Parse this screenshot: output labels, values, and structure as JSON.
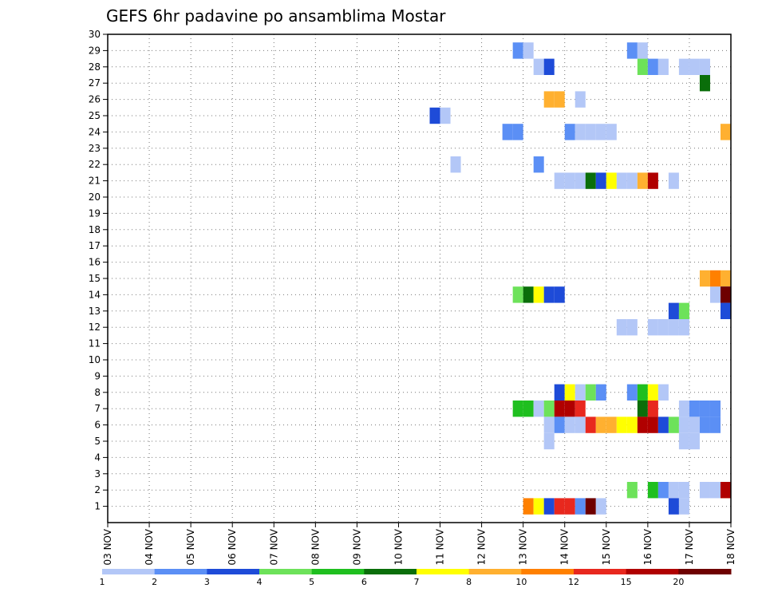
{
  "chart_data": {
    "type": "heatmap",
    "title": "GEFS 6hr padavine po ansamblima Mostar",
    "xlabel": "",
    "ylabel": "",
    "x_tick_labels": [
      "03 NOV",
      "04 NOV",
      "05 NOV",
      "06 NOV",
      "07 NOV",
      "08 NOV",
      "09 NOV",
      "10 NOV",
      "11 NOV",
      "12 NOV",
      "13 NOV",
      "14 NOV",
      "15 NOV",
      "16 NOV",
      "17 NOV",
      "18 NOV"
    ],
    "y_tick_labels": [
      "1",
      "2",
      "3",
      "4",
      "5",
      "6",
      "7",
      "8",
      "9",
      "10",
      "11",
      "12",
      "13",
      "14",
      "15",
      "16",
      "17",
      "18",
      "19",
      "20",
      "21",
      "22",
      "23",
      "24",
      "25",
      "26",
      "27",
      "28",
      "29",
      "30"
    ],
    "x_range_days": [
      0,
      15
    ],
    "y_range": [
      0,
      30
    ],
    "grid": true,
    "colorbar": {
      "labels": [
        "1",
        "2",
        "3",
        "4",
        "5",
        "6",
        "7",
        "8",
        "10",
        "12",
        "15",
        "20"
      ],
      "colors": [
        "#b3c7f7",
        "#5b8ff5",
        "#1e4bd8",
        "#6de25a",
        "#1fbf1f",
        "#0a6e0a",
        "#ffff00",
        "#ffb030",
        "#ff8000",
        "#e8281e",
        "#b00000",
        "#6e0000"
      ]
    },
    "cells": [
      {
        "member": 29,
        "day": 9.75,
        "c": 2
      },
      {
        "member": 29,
        "day": 10.0,
        "c": 1
      },
      {
        "member": 29,
        "day": 12.5,
        "c": 2
      },
      {
        "member": 29,
        "day": 12.75,
        "c": 1
      },
      {
        "member": 28,
        "day": 10.25,
        "c": 1
      },
      {
        "member": 28,
        "day": 10.5,
        "c": 3
      },
      {
        "member": 28,
        "day": 12.75,
        "c": 4
      },
      {
        "member": 28,
        "day": 13.0,
        "c": 2
      },
      {
        "member": 28,
        "day": 13.25,
        "c": 1
      },
      {
        "member": 28,
        "day": 13.75,
        "c": 1
      },
      {
        "member": 28,
        "day": 14.0,
        "c": 1
      },
      {
        "member": 28,
        "day": 14.25,
        "c": 1
      },
      {
        "member": 27,
        "day": 14.25,
        "c": 6
      },
      {
        "member": 26,
        "day": 10.5,
        "c": 8
      },
      {
        "member": 26,
        "day": 10.75,
        "c": 8
      },
      {
        "member": 26,
        "day": 11.25,
        "c": 1
      },
      {
        "member": 25,
        "day": 7.75,
        "c": 3
      },
      {
        "member": 25,
        "day": 8.0,
        "c": 1
      },
      {
        "member": 24,
        "day": 9.5,
        "c": 2
      },
      {
        "member": 24,
        "day": 9.75,
        "c": 2
      },
      {
        "member": 24,
        "day": 11.0,
        "c": 2
      },
      {
        "member": 24,
        "day": 11.25,
        "c": 1
      },
      {
        "member": 24,
        "day": 11.5,
        "c": 1
      },
      {
        "member": 24,
        "day": 11.75,
        "c": 1
      },
      {
        "member": 24,
        "day": 12.0,
        "c": 1
      },
      {
        "member": 24,
        "day": 14.75,
        "c": 8
      },
      {
        "member": 22,
        "day": 8.25,
        "c": 1
      },
      {
        "member": 22,
        "day": 10.25,
        "c": 2
      },
      {
        "member": 21,
        "day": 10.75,
        "c": 1
      },
      {
        "member": 21,
        "day": 11.0,
        "c": 1
      },
      {
        "member": 21,
        "day": 11.25,
        "c": 1
      },
      {
        "member": 21,
        "day": 11.5,
        "c": 6
      },
      {
        "member": 21,
        "day": 11.75,
        "c": 3
      },
      {
        "member": 21,
        "day": 12.0,
        "c": 7
      },
      {
        "member": 21,
        "day": 12.25,
        "c": 1
      },
      {
        "member": 21,
        "day": 12.5,
        "c": 1
      },
      {
        "member": 21,
        "day": 12.75,
        "c": 8
      },
      {
        "member": 21,
        "day": 13.0,
        "c": 11
      },
      {
        "member": 21,
        "day": 13.5,
        "c": 1
      },
      {
        "member": 15,
        "day": 14.75,
        "c": 8
      },
      {
        "member": 14,
        "day": 9.75,
        "c": 4
      },
      {
        "member": 14,
        "day": 10.0,
        "c": 6
      },
      {
        "member": 14,
        "day": 10.25,
        "c": 7
      },
      {
        "member": 14,
        "day": 10.5,
        "c": 3
      },
      {
        "member": 14,
        "day": 10.75,
        "c": 3
      },
      {
        "member": 14,
        "day": 14.5,
        "c": 1
      },
      {
        "member": 14,
        "day": 14.75,
        "c": 3
      },
      {
        "member": 13,
        "day": 13.5,
        "c": 3
      },
      {
        "member": 13,
        "day": 13.75,
        "c": 4
      },
      {
        "member": 12,
        "day": 12.25,
        "c": 1
      },
      {
        "member": 12,
        "day": 12.5,
        "c": 1
      },
      {
        "member": 12,
        "day": 13.0,
        "c": 1
      },
      {
        "member": 12,
        "day": 13.25,
        "c": 1
      },
      {
        "member": 12,
        "day": 13.5,
        "c": 1
      },
      {
        "member": 12,
        "day": 13.75,
        "c": 1
      },
      {
        "member": 8,
        "day": 10.75,
        "c": 3
      },
      {
        "member": 8,
        "day": 11.0,
        "c": 7
      },
      {
        "member": 8,
        "day": 11.25,
        "c": 1
      },
      {
        "member": 8,
        "day": 11.5,
        "c": 4
      },
      {
        "member": 8,
        "day": 11.75,
        "c": 2
      },
      {
        "member": 8,
        "day": 12.5,
        "c": 2
      },
      {
        "member": 8,
        "day": 12.75,
        "c": 5
      },
      {
        "member": 8,
        "day": 13.0,
        "c": 7
      },
      {
        "member": 8,
        "day": 13.25,
        "c": 1
      },
      {
        "member": 7,
        "day": 9.75,
        "c": 5
      },
      {
        "member": 7,
        "day": 10.0,
        "c": 5
      },
      {
        "member": 7,
        "day": 10.25,
        "c": 1
      },
      {
        "member": 7,
        "day": 10.5,
        "c": 4
      },
      {
        "member": 7,
        "day": 10.75,
        "c": 11
      },
      {
        "member": 7,
        "day": 11.0,
        "c": 11
      },
      {
        "member": 7,
        "day": 11.25,
        "c": 10
      },
      {
        "member": 7,
        "day": 12.75,
        "c": 6
      },
      {
        "member": 7,
        "day": 13.0,
        "c": 10
      },
      {
        "member": 7,
        "day": 13.75,
        "c": 1
      },
      {
        "member": 7,
        "day": 14.0,
        "c": 2
      },
      {
        "member": 7,
        "day": 14.25,
        "c": 2
      },
      {
        "member": 7,
        "day": 14.5,
        "c": 2
      },
      {
        "member": 6,
        "day": 10.5,
        "c": 1
      },
      {
        "member": 6,
        "day": 10.75,
        "c": 2
      },
      {
        "member": 6,
        "day": 11.0,
        "c": 1
      },
      {
        "member": 6,
        "day": 11.25,
        "c": 1
      },
      {
        "member": 6,
        "day": 11.5,
        "c": 10
      },
      {
        "member": 6,
        "day": 11.75,
        "c": 8
      },
      {
        "member": 6,
        "day": 12.0,
        "c": 8
      },
      {
        "member": 6,
        "day": 12.25,
        "c": 7
      },
      {
        "member": 6,
        "day": 12.5,
        "c": 7
      },
      {
        "member": 6,
        "day": 12.75,
        "c": 11
      },
      {
        "member": 6,
        "day": 13.0,
        "c": 11
      },
      {
        "member": 6,
        "day": 13.25,
        "c": 3
      },
      {
        "member": 6,
        "day": 13.5,
        "c": 4
      },
      {
        "member": 6,
        "day": 13.75,
        "c": 1
      },
      {
        "member": 6,
        "day": 14.0,
        "c": 1
      },
      {
        "member": 6,
        "day": 14.25,
        "c": 2
      },
      {
        "member": 6,
        "day": 14.5,
        "c": 2
      },
      {
        "member": 5,
        "day": 10.5,
        "c": 1
      },
      {
        "member": 5,
        "day": 13.75,
        "c": 1
      },
      {
        "member": 5,
        "day": 14.0,
        "c": 1
      },
      {
        "member": 2,
        "day": 12.5,
        "c": 4
      },
      {
        "member": 2,
        "day": 13.0,
        "c": 5
      },
      {
        "member": 2,
        "day": 13.25,
        "c": 2
      },
      {
        "member": 2,
        "day": 13.5,
        "c": 1
      },
      {
        "member": 2,
        "day": 13.75,
        "c": 1
      },
      {
        "member": 2,
        "day": 14.25,
        "c": 1
      },
      {
        "member": 2,
        "day": 14.5,
        "c": 1
      },
      {
        "member": 2,
        "day": 14.75,
        "c": 8
      },
      {
        "member": 2,
        "day": 15.0,
        "c": 11
      },
      {
        "member": 1,
        "day": 10.0,
        "c": 9
      },
      {
        "member": 1,
        "day": 10.25,
        "c": 7
      },
      {
        "member": 1,
        "day": 10.5,
        "c": 3
      },
      {
        "member": 1,
        "day": 10.75,
        "c": 10
      },
      {
        "member": 1,
        "day": 11.0,
        "c": 10
      },
      {
        "member": 1,
        "day": 11.25,
        "c": 2
      },
      {
        "member": 1,
        "day": 11.5,
        "c": 12
      },
      {
        "member": 1,
        "day": 11.75,
        "c": 1
      },
      {
        "member": 1,
        "day": 13.5,
        "c": 3
      },
      {
        "member": 1,
        "day": 13.75,
        "c": 1
      }
    ],
    "partial_cells": [
      {
        "member": 15,
        "day": 14.5,
        "c": 9
      },
      {
        "member": 15,
        "day": 14.25,
        "c": 8
      },
      {
        "member": 14,
        "day": 14.75,
        "c": 12
      },
      {
        "member": 13,
        "day": 14.75,
        "c": 3
      },
      {
        "member": 2,
        "day": 14.75,
        "c": 11
      }
    ]
  }
}
